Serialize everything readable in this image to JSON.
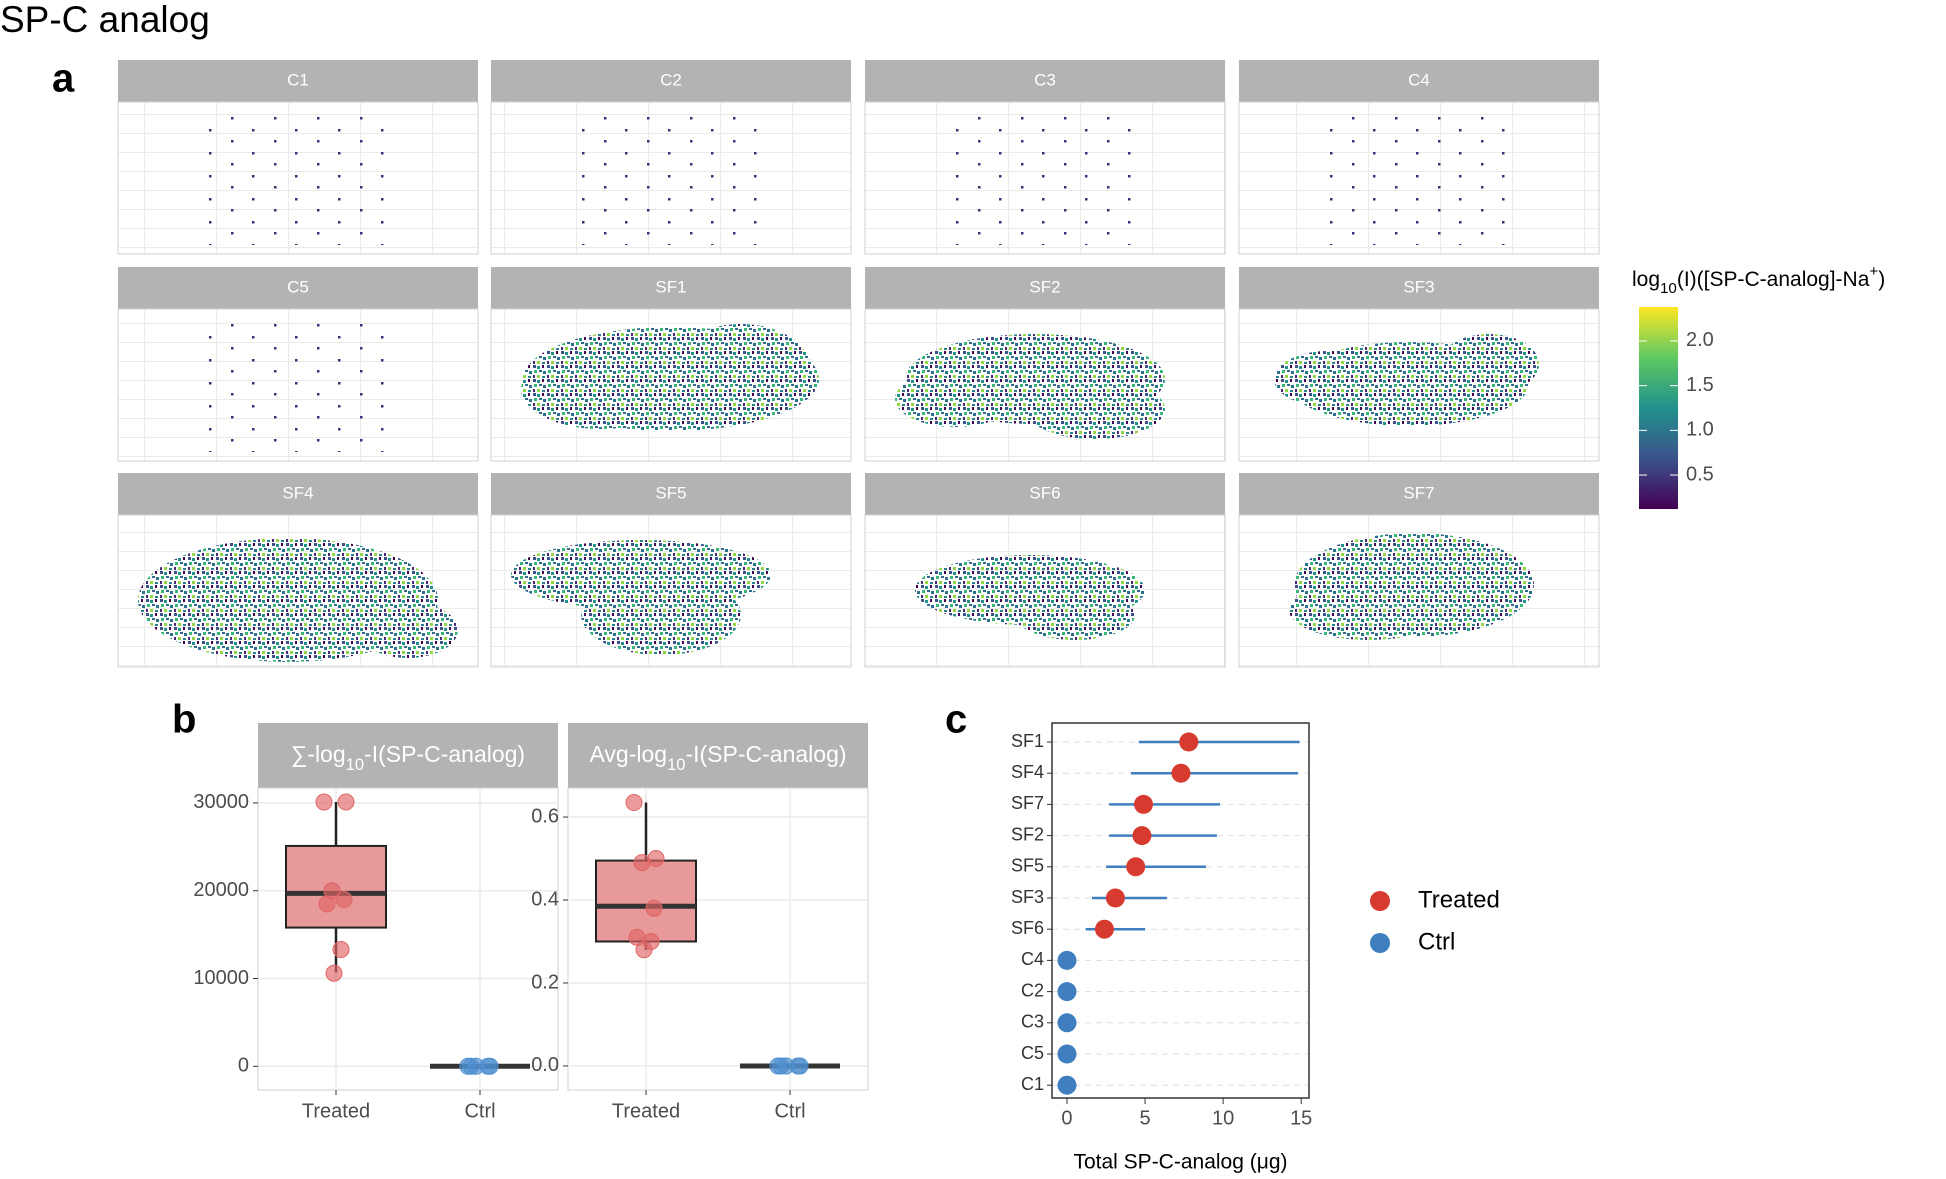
{
  "title": "SP-C analog",
  "chart_data": [
    {
      "type": "facet-map",
      "label": "a",
      "panels": [
        "C1",
        "C2",
        "C3",
        "C4",
        "C5",
        "SF1",
        "SF2",
        "SF3",
        "SF4",
        "SF5",
        "SF6",
        "SF7"
      ],
      "colorbar": {
        "title_parts": [
          {
            "text": "log"
          },
          {
            "sub": "10"
          },
          {
            "text": "(I)([SP-C-analog]-Na"
          },
          {
            "sup": "+"
          },
          {
            "text": ")"
          }
        ],
        "zlim": [
          0.12,
          2.38
        ],
        "ticks": [
          0.5,
          {
            "value": 1,
            "label": "1.0"
          },
          1.5,
          {
            "value": 2,
            "label": "2.0"
          }
        ]
      }
    },
    {
      "type": "box",
      "label": "b",
      "categories": [
        "Treated",
        "Ctrl"
      ],
      "colors": [
        "#e06666",
        "#4f8fcf"
      ],
      "box_color": "#e8999a",
      "facets": [
        {
          "strip_parts": [
            {
              "text": "∑-log"
            },
            {
              "sub": "10"
            },
            {
              "text": "-I(SP-C-analog)"
            }
          ],
          "ylim": [
            -2700,
            31700
          ],
          "yticks": [
            0,
            10000,
            20000,
            30000
          ],
          "boxes": [
            {
              "min": 10700,
              "q1": 15800,
              "median": 19700,
              "q3": 25100,
              "max": 30100
            },
            {
              "min": 0,
              "q1": 0,
              "median": 0,
              "q3": 0,
              "max": 0
            }
          ],
          "points": [
            [
              30100,
              30100,
              20000,
              19000,
              18500,
              13300,
              10600
            ],
            [
              0,
              0,
              0,
              0,
              0
            ]
          ]
        },
        {
          "strip_parts": [
            {
              "text": "Avg-log"
            },
            {
              "sub": "10"
            },
            {
              "text": "-I(SP-C-analog)"
            }
          ],
          "ylim": [
            -0.058,
            0.67
          ],
          "yticks": [
            {
              "value": 0,
              "label": "0.0"
            },
            0.2,
            0.4,
            0.6
          ],
          "boxes": [
            {
              "min": 0.28,
              "q1": 0.3,
              "median": 0.385,
              "q3": 0.495,
              "max": 0.635
            },
            {
              "min": 0,
              "q1": 0,
              "median": 0,
              "q3": 0,
              "max": 0
            }
          ],
          "points": [
            [
              0.635,
              0.5,
              0.49,
              0.38,
              0.31,
              0.3,
              0.28
            ],
            [
              0,
              0,
              0,
              0,
              0
            ]
          ]
        }
      ]
    },
    {
      "type": "dot-error",
      "label": "c",
      "xlabel": "Total SP-C-analog (μg)",
      "xlim": [
        -0.96,
        15.5
      ],
      "xticks": [
        0,
        5,
        10,
        15
      ],
      "series": [
        {
          "name": "Treated",
          "color": "#d73b30",
          "categories": [
            "SF1",
            "SF4",
            "SF7",
            "SF2",
            "SF5",
            "SF3",
            "SF6"
          ],
          "values": [
            7.8,
            7.3,
            4.9,
            4.8,
            4.4,
            3.1,
            2.4
          ],
          "lower": [
            4.6,
            4.1,
            2.7,
            2.7,
            2.5,
            1.6,
            1.2
          ],
          "upper": [
            14.9,
            14.8,
            9.8,
            9.6,
            8.9,
            6.4,
            5.0
          ]
        },
        {
          "name": "Ctrl",
          "color": "#3f7fc0",
          "categories": [
            "C4",
            "C2",
            "C3",
            "C5",
            "C1"
          ],
          "values": [
            0,
            0,
            0,
            0,
            0
          ]
        }
      ]
    }
  ]
}
